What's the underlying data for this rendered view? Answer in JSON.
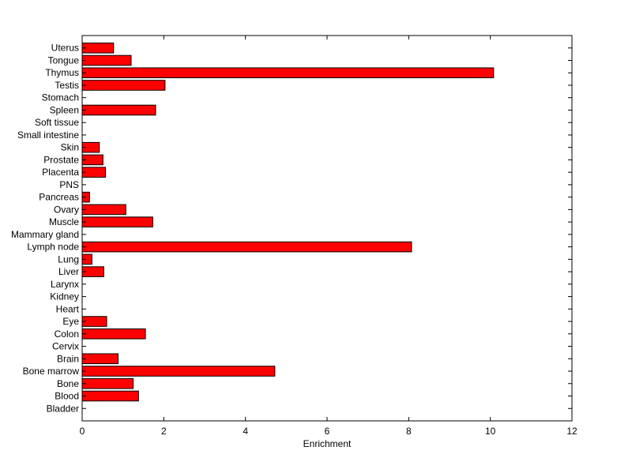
{
  "chart_data": {
    "type": "bar",
    "orientation": "horizontal",
    "title": "",
    "xlabel": "Enrichment",
    "ylabel": "",
    "xlim": [
      0,
      12
    ],
    "xticks": [
      0,
      2,
      4,
      6,
      8,
      10,
      12
    ],
    "grid": false,
    "bar_color": "#ff0000",
    "bar_edge_color": "#000000",
    "categories": [
      "Bladder",
      "Blood",
      "Bone",
      "Bone marrow",
      "Brain",
      "Cervix",
      "Colon",
      "Eye",
      "Heart",
      "Kidney",
      "Larynx",
      "Liver",
      "Lung",
      "Lymph node",
      "Mammary gland",
      "Muscle",
      "Ovary",
      "Pancreas",
      "PNS",
      "Placenta",
      "Prostate",
      "Skin",
      "Small intestine",
      "Soft tissue",
      "Spleen",
      "Stomach",
      "Testis",
      "Thymus",
      "Tongue",
      "Uterus"
    ],
    "values": [
      0,
      1.38,
      1.25,
      4.72,
      0.88,
      0,
      1.55,
      0.6,
      0,
      0,
      0,
      0.53,
      0.24,
      8.07,
      0,
      1.73,
      1.07,
      0.18,
      0,
      0.57,
      0.51,
      0.42,
      0,
      0,
      1.8,
      0,
      2.03,
      10.08,
      1.2,
      0.77
    ]
  }
}
